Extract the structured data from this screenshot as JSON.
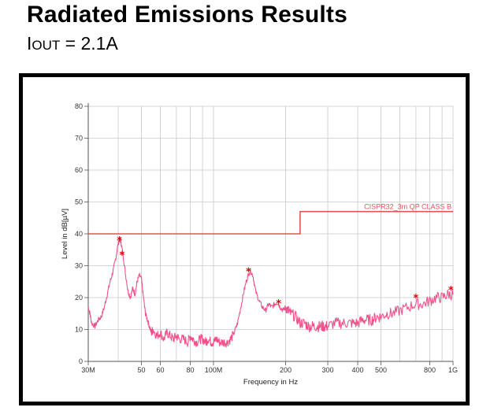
{
  "header": {
    "title": "Radiated Emissions Results",
    "subtitle_prefix": "I",
    "subtitle_sub": "OUT",
    "subtitle_suffix": " = 2.1A"
  },
  "chart_data": {
    "type": "line",
    "title": "",
    "xlabel": "Frequency in Hz",
    "ylabel": "Level in dB[µV]",
    "x_scale": "log",
    "xlim": [
      30,
      1000
    ],
    "ylim": [
      0,
      80
    ],
    "grid": true,
    "x_ticks": [
      {
        "value": 30,
        "label": "30M"
      },
      {
        "value": 50,
        "label": "50"
      },
      {
        "value": 60,
        "label": "60"
      },
      {
        "value": 80,
        "label": "80"
      },
      {
        "value": 100,
        "label": "100M"
      },
      {
        "value": 200,
        "label": "200"
      },
      {
        "value": 300,
        "label": "300"
      },
      {
        "value": 400,
        "label": "400"
      },
      {
        "value": 500,
        "label": "500"
      },
      {
        "value": 800,
        "label": "800"
      },
      {
        "value": 1000,
        "label": "1G"
      }
    ],
    "y_ticks": [
      0,
      10,
      20,
      30,
      40,
      50,
      60,
      70,
      80
    ],
    "limit_line": {
      "name": "CISPR32_3m QP CLASS B",
      "color": "#e05555",
      "points": [
        [
          30,
          40
        ],
        [
          230,
          40
        ],
        [
          230,
          47
        ],
        [
          1000,
          47
        ]
      ]
    },
    "series": [
      {
        "color": "#f0508a",
        "x": [
          30,
          30.5,
          31,
          32,
          33,
          34,
          35,
          36,
          37,
          38,
          39,
          40,
          40.7,
          41.2,
          42,
          43,
          44,
          45,
          46,
          47,
          48,
          49,
          50,
          51,
          52,
          53,
          54,
          55,
          56,
          58,
          60,
          62,
          64,
          66,
          68,
          70,
          72,
          75,
          78,
          80,
          82,
          85,
          88,
          90,
          93,
          95,
          98,
          100,
          103,
          106,
          110,
          114,
          118,
          122,
          126,
          130,
          134,
          138,
          142,
          146,
          150,
          155,
          160,
          165,
          170,
          175,
          180,
          185,
          190,
          195,
          200,
          205,
          210,
          220,
          230,
          240,
          250,
          260,
          270,
          280,
          290,
          300,
          320,
          340,
          360,
          380,
          400,
          420,
          440,
          460,
          480,
          500,
          530,
          560,
          600,
          650,
          700,
          750,
          800,
          850,
          900,
          950,
          1000
        ],
        "y": [
          17,
          15,
          12,
          11,
          13,
          14,
          17,
          21,
          25,
          28,
          32,
          37,
          38.5,
          37,
          33,
          27,
          22,
          20,
          23,
          21,
          25,
          27,
          26,
          20,
          15,
          13,
          11,
          9,
          10,
          8,
          9,
          7,
          9,
          8,
          7,
          8,
          7,
          7,
          6,
          8,
          7,
          6,
          7,
          7,
          6,
          7,
          6,
          6,
          7,
          6,
          6,
          6,
          7,
          9,
          12,
          17,
          22,
          26,
          28.5,
          27,
          22,
          19,
          17,
          16,
          18,
          17,
          18,
          18.5,
          17,
          16,
          17,
          16,
          15,
          14,
          12,
          12,
          11,
          11,
          11,
          11,
          11,
          11,
          12,
          12,
          12,
          12,
          12,
          13,
          13,
          13,
          14,
          14,
          15,
          15,
          16,
          17,
          18,
          18,
          19,
          20,
          20,
          21,
          21
        ]
      }
    ],
    "markers": {
      "symbol": "*",
      "color": "#e00000",
      "points": [
        [
          40.5,
          38
        ],
        [
          41.5,
          33.5
        ],
        [
          140,
          28.3
        ],
        [
          187,
          18.3
        ],
        [
          700,
          20
        ],
        [
          980,
          22.5
        ]
      ]
    }
  }
}
